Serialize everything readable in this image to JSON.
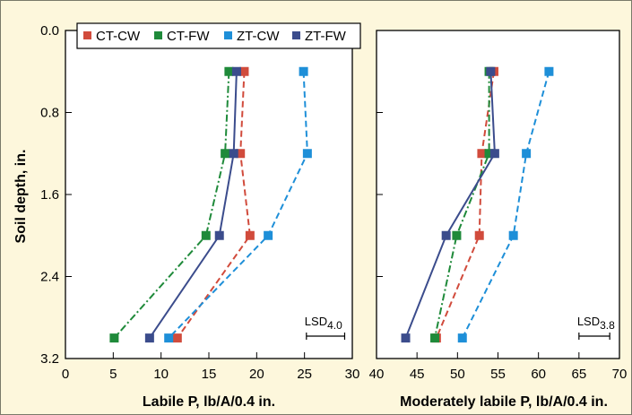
{
  "chart_data": [
    {
      "type": "line",
      "orientation": "depth-profile",
      "y_axis": {
        "label": "Soil depth, in.",
        "ticks": [
          "0.0",
          "0.8",
          "1.6",
          "2.4",
          "3.2"
        ],
        "lim": [
          0,
          3.2
        ],
        "inverted": true
      },
      "x_axis": {
        "label": "Labile P, lb/A/0.4 in.",
        "ticks": [
          "0",
          "5",
          "10",
          "15",
          "20",
          "25",
          "30"
        ],
        "lim": [
          0,
          30
        ]
      },
      "depths": [
        0.4,
        1.2,
        2.0,
        3.0
      ],
      "series": [
        {
          "name": "CT-CW",
          "color": "#d14b3c",
          "dash": "dashed",
          "values": [
            18.7,
            18.3,
            19.3,
            11.7
          ]
        },
        {
          "name": "CT-FW",
          "color": "#1f8a3a",
          "dash": "dashdot",
          "values": [
            17.1,
            16.7,
            14.7,
            5.1
          ]
        },
        {
          "name": "ZT-CW",
          "color": "#1e8fd8",
          "dash": "dashed",
          "values": [
            24.9,
            25.3,
            21.2,
            10.8
          ]
        },
        {
          "name": "ZT-FW",
          "color": "#3b4c8c",
          "dash": "solid",
          "values": [
            17.9,
            17.6,
            16.1,
            8.8
          ]
        }
      ],
      "lsd": {
        "label": "LSD",
        "subscript": "4.0",
        "value": 4.0,
        "x_start": 25.2
      },
      "grid": false,
      "legend": "top"
    },
    {
      "type": "line",
      "orientation": "depth-profile",
      "x_axis": {
        "label": "Moderately labile P, lb/A/0.4 in.",
        "ticks": [
          "40",
          "45",
          "50",
          "55",
          "60",
          "65",
          "70"
        ],
        "lim": [
          40,
          70
        ]
      },
      "depths": [
        0.4,
        1.2,
        2.0,
        3.0
      ],
      "series": [
        {
          "name": "CT-CW",
          "color": "#d14b3c",
          "dash": "dashed",
          "values": [
            54.5,
            53.0,
            52.7,
            47.4
          ]
        },
        {
          "name": "CT-FW",
          "color": "#1f8a3a",
          "dash": "dashdot",
          "values": [
            53.9,
            53.9,
            49.9,
            47.2
          ]
        },
        {
          "name": "ZT-CW",
          "color": "#1e8fd8",
          "dash": "dashed",
          "values": [
            61.3,
            58.5,
            56.9,
            50.6
          ]
        },
        {
          "name": "ZT-FW",
          "color": "#3b4c8c",
          "dash": "solid",
          "values": [
            54.1,
            54.6,
            48.6,
            43.6
          ]
        }
      ],
      "lsd": {
        "label": "LSD",
        "subscript": "3.8",
        "value": 3.8,
        "x_start": 65.0
      },
      "grid": false
    }
  ]
}
